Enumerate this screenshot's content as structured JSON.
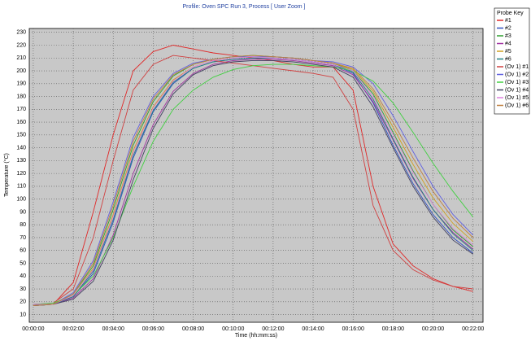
{
  "chart_data": {
    "type": "line",
    "title": "Profile: Oven SPC Run 3, Process  [ User Zoom ]",
    "x_label": "Time (hh:mm:ss)",
    "y_label": "Temperature (°C)",
    "legend_title": "Probe Key",
    "grid": true,
    "x": [
      0,
      1,
      2,
      3,
      4,
      5,
      6,
      7,
      8,
      9,
      10,
      11,
      12,
      13,
      14,
      15,
      16,
      17,
      18,
      19,
      20,
      21,
      22
    ],
    "xlim": [
      -0.2,
      22.5
    ],
    "xticks": [
      {
        "value": 0,
        "label": "00:00:00"
      },
      {
        "value": 2,
        "label": "00:02:00"
      },
      {
        "value": 4,
        "label": "00:04:00"
      },
      {
        "value": 6,
        "label": "00:06:00"
      },
      {
        "value": 8,
        "label": "00:08:00"
      },
      {
        "value": 10,
        "label": "00:10:00"
      },
      {
        "value": 12,
        "label": "00:12:00"
      },
      {
        "value": 14,
        "label": "00:14:00"
      },
      {
        "value": 16,
        "label": "00:16:00"
      },
      {
        "value": 18,
        "label": "00:18:00"
      },
      {
        "value": 20,
        "label": "00:20:00"
      },
      {
        "value": 22,
        "label": "00:22:00"
      }
    ],
    "ylim": [
      4,
      233
    ],
    "yticks": [
      10,
      20,
      30,
      40,
      50,
      60,
      70,
      80,
      90,
      100,
      110,
      120,
      130,
      140,
      150,
      160,
      170,
      180,
      190,
      200,
      210,
      220,
      230
    ],
    "series": [
      {
        "name": "#1",
        "color": "#e02828",
        "values": [
          18,
          18,
          35,
          90,
          150,
          200,
          215,
          220,
          217,
          214,
          212,
          210,
          208,
          205,
          203,
          203,
          185,
          110,
          65,
          48,
          38,
          32,
          28
        ]
      },
      {
        "name": "#2",
        "color": "#3050c0",
        "values": [
          17,
          18,
          24,
          42,
          82,
          132,
          168,
          190,
          202,
          207,
          209,
          210,
          210,
          209,
          207,
          205,
          198,
          175,
          142,
          112,
          88,
          70,
          58
        ]
      },
      {
        "name": "#3",
        "color": "#30a030",
        "values": [
          17,
          18,
          26,
          48,
          92,
          142,
          176,
          196,
          205,
          209,
          211,
          212,
          211,
          210,
          208,
          206,
          200,
          182,
          152,
          122,
          96,
          76,
          63
        ]
      },
      {
        "name": "#4",
        "color": "#a030a0",
        "values": [
          18,
          18,
          23,
          38,
          72,
          120,
          158,
          184,
          198,
          205,
          208,
          209,
          209,
          208,
          206,
          204,
          197,
          176,
          146,
          116,
          92,
          74,
          61
        ]
      },
      {
        "name": "#5",
        "color": "#d0a020",
        "values": [
          17,
          18,
          25,
          46,
          88,
          138,
          172,
          193,
          203,
          208,
          210,
          211,
          211,
          210,
          208,
          206,
          201,
          184,
          156,
          127,
          101,
          81,
          67
        ]
      },
      {
        "name": "#6",
        "color": "#208080",
        "values": [
          18,
          18,
          24,
          44,
          84,
          134,
          169,
          191,
          202,
          207,
          209,
          210,
          210,
          209,
          207,
          205,
          199,
          178,
          147,
          117,
          92,
          73,
          60
        ]
      },
      {
        "name": "(Ov 1) #1",
        "color": "#d04040",
        "values": [
          18,
          19,
          30,
          70,
          130,
          185,
          205,
          212,
          210,
          208,
          206,
          204,
          202,
          200,
          198,
          195,
          170,
          95,
          60,
          45,
          37,
          32,
          30
        ]
      },
      {
        "name": "(Ov 1) #2",
        "color": "#6060e0",
        "values": [
          17,
          18,
          27,
          52,
          98,
          148,
          180,
          198,
          206,
          209,
          211,
          211,
          211,
          210,
          208,
          207,
          203,
          190,
          165,
          137,
          110,
          88,
          72
        ]
      },
      {
        "name": "(Ov 1) #3",
        "color": "#40d040",
        "values": [
          18,
          19,
          25,
          40,
          70,
          110,
          145,
          170,
          185,
          195,
          201,
          204,
          205,
          205,
          204,
          203,
          200,
          192,
          175,
          152,
          128,
          106,
          86
        ]
      },
      {
        "name": "(Ov 1) #4",
        "color": "#404060",
        "values": [
          17,
          18,
          22,
          36,
          68,
          115,
          155,
          182,
          197,
          204,
          207,
          208,
          208,
          207,
          205,
          203,
          195,
          172,
          140,
          110,
          86,
          68,
          57
        ]
      },
      {
        "name": "(Ov 1) #5",
        "color": "#e080e0",
        "values": [
          18,
          18,
          25,
          45,
          86,
          136,
          171,
          192,
          203,
          208,
          210,
          211,
          210,
          209,
          207,
          205,
          200,
          180,
          150,
          121,
          96,
          77,
          64
        ]
      },
      {
        "name": "(Ov 1) #6",
        "color": "#c08040",
        "values": [
          17,
          18,
          26,
          50,
          95,
          145,
          178,
          197,
          205,
          209,
          211,
          212,
          211,
          210,
          208,
          206,
          202,
          186,
          160,
          132,
          106,
          85,
          70
        ]
      }
    ]
  }
}
